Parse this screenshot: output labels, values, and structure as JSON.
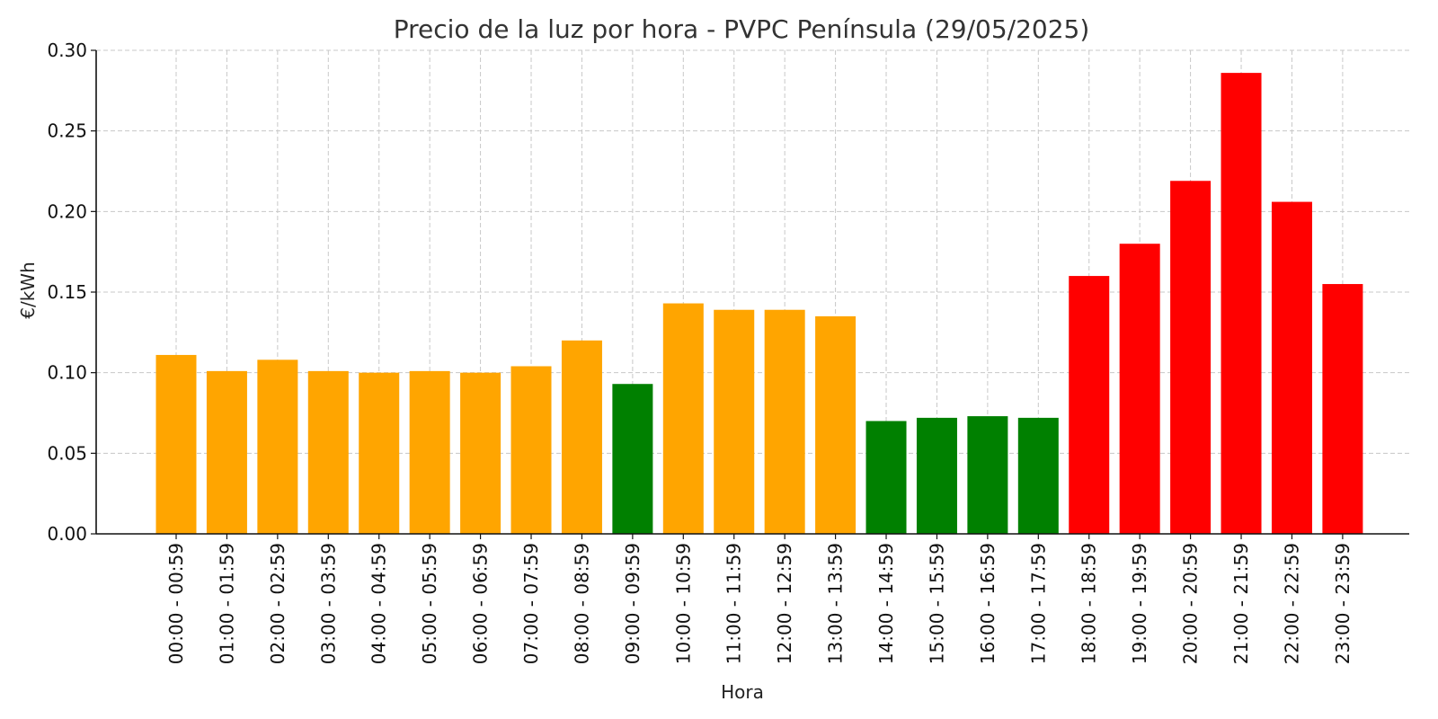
{
  "chart_data": {
    "type": "bar",
    "title": "Precio de la luz por hora - PVPC Península (29/05/2025)",
    "xlabel": "Hora",
    "ylabel": "€/kWh",
    "ylim": [
      0,
      0.3
    ],
    "yticks": [
      "0.00",
      "0.05",
      "0.10",
      "0.15",
      "0.20",
      "0.25",
      "0.30"
    ],
    "grid": true,
    "categories": [
      "00:00 - 00:59",
      "01:00 - 01:59",
      "02:00 - 02:59",
      "03:00 - 03:59",
      "04:00 - 04:59",
      "05:00 - 05:59",
      "06:00 - 06:59",
      "07:00 - 07:59",
      "08:00 - 08:59",
      "09:00 - 09:59",
      "10:00 - 10:59",
      "11:00 - 11:59",
      "12:00 - 12:59",
      "13:00 - 13:59",
      "14:00 - 14:59",
      "15:00 - 15:59",
      "16:00 - 16:59",
      "17:00 - 17:59",
      "18:00 - 18:59",
      "19:00 - 19:59",
      "20:00 - 20:59",
      "21:00 - 21:59",
      "22:00 - 22:59",
      "23:00 - 23:59"
    ],
    "values": [
      0.111,
      0.101,
      0.108,
      0.101,
      0.1,
      0.101,
      0.1,
      0.104,
      0.12,
      0.093,
      0.143,
      0.139,
      0.139,
      0.135,
      0.07,
      0.072,
      0.073,
      0.072,
      0.16,
      0.18,
      0.219,
      0.286,
      0.206,
      0.155
    ],
    "bar_colors": [
      "#FFA500",
      "#FFA500",
      "#FFA500",
      "#FFA500",
      "#FFA500",
      "#FFA500",
      "#FFA500",
      "#FFA500",
      "#FFA500",
      "#008000",
      "#FFA500",
      "#FFA500",
      "#FFA500",
      "#FFA500",
      "#008000",
      "#008000",
      "#008000",
      "#008000",
      "#FF0000",
      "#FF0000",
      "#FF0000",
      "#FF0000",
      "#FF0000",
      "#FF0000"
    ]
  }
}
